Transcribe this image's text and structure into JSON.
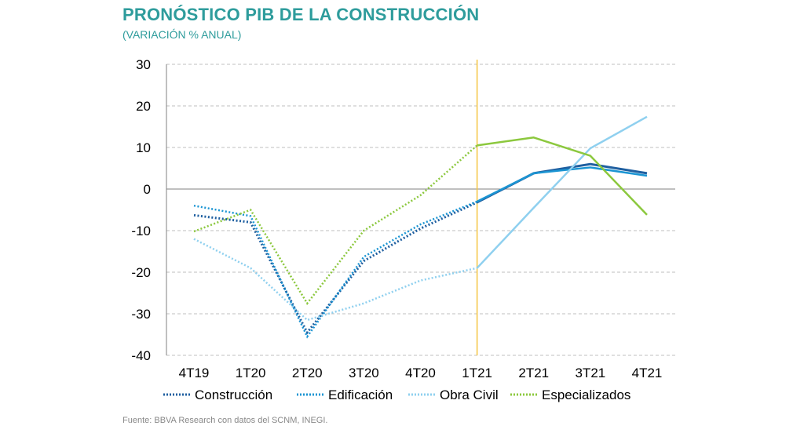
{
  "title": "PRONÓSTICO PIB DE LA CONSTRUCCIÓN",
  "subtitle": "(VARIACIÓN % ANUAL)",
  "source": "Fuente: BBVA Research con datos del SCNM, INEGI.",
  "chart_data": {
    "type": "line",
    "categories": [
      "4T19",
      "1T20",
      "2T20",
      "3T20",
      "4T20",
      "1T21",
      "2T21",
      "3T21",
      "4T21"
    ],
    "ylim": [
      -40,
      30
    ],
    "yticks": [
      30,
      20,
      10,
      0,
      -10,
      -20,
      -30,
      -40
    ],
    "grid": true,
    "forecast_start": "1T21",
    "legend_position": "bottom",
    "colors": {
      "construccion": "#1f5fa0",
      "edificacion": "#1b95d3",
      "obra_civil": "#8fd0ef",
      "especializados": "#8cc83e",
      "forecast_line": "#f5c542",
      "grid": "#bfbfbf"
    },
    "series": [
      {
        "key": "construccion",
        "name": "Construcción",
        "values": [
          -6.3,
          -8.0,
          -34.5,
          -17.3,
          -9.5,
          -3.2,
          3.8,
          6.0,
          3.8
        ]
      },
      {
        "key": "edificacion",
        "name": "Edificación",
        "values": [
          -4.0,
          -6.5,
          -35.5,
          -16.3,
          -8.5,
          -3.0,
          3.8,
          5.2,
          3.2
        ]
      },
      {
        "key": "obra_civil",
        "name": "Obra Civil",
        "values": [
          -12.0,
          -19.0,
          -31.5,
          -27.5,
          -22.0,
          -19.0,
          -4.5,
          9.8,
          17.4
        ]
      },
      {
        "key": "especializados",
        "name": "Especializados",
        "values": [
          -10.2,
          -5.0,
          -27.5,
          -10.0,
          -1.5,
          10.5,
          12.4,
          8.0,
          -6.2
        ]
      }
    ]
  }
}
